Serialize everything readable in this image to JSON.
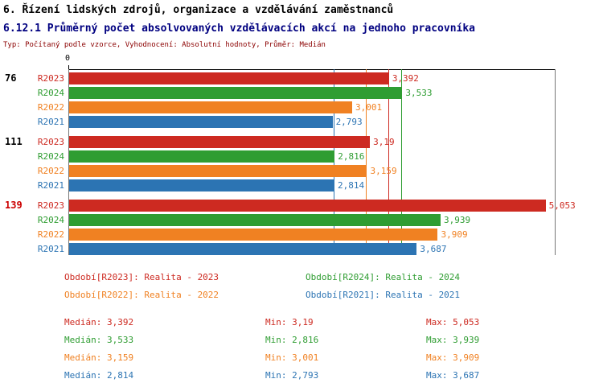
{
  "header": {
    "section_title": "6. Řízení lidských zdrojů, organizace a vzdělávání zaměstnanců",
    "indicator_title": "6.12.1 Průměrný počet absolvovaných vzdělávacích akcí na jednoho pracovníka",
    "subtitle": "Typ: Počítaný podle vzorce, Vyhodnocení: Absolutní hodnoty, Průměr: Medián"
  },
  "colors": {
    "section_title": "#000000",
    "indicator_title": "#000080",
    "subtitle": "#8b0000",
    "axis": "#000000",
    "plot_border": "#777777",
    "group_label_default": "#000000",
    "group_label_highlight": "#cc0000"
  },
  "series_colors": {
    "R2023": "#cd2a21",
    "R2024": "#2f9d32",
    "R2022": "#f08122",
    "R2021": "#2c74b3"
  },
  "chart_data": {
    "type": "bar",
    "orientation": "horizontal",
    "title": "6.12.1 Průměrný počet absolvovaných vzdělávacích akcí na jednoho pracovníka",
    "xlim": [
      0,
      5.15
    ],
    "grid": false,
    "legend_position": "bottom",
    "axis": {
      "zero_label": "0"
    },
    "series_order": [
      "R2023",
      "R2024",
      "R2022",
      "R2021"
    ],
    "groups": [
      {
        "label": "76",
        "label_color": "#000000",
        "bars": [
          {
            "series": "R2023",
            "value": 3.392,
            "label": "3,392"
          },
          {
            "series": "R2024",
            "value": 3.533,
            "label": "3,533"
          },
          {
            "series": "R2022",
            "value": 3.001,
            "label": "3,001"
          },
          {
            "series": "R2021",
            "value": 2.793,
            "label": "2,793"
          }
        ]
      },
      {
        "label": "111",
        "label_color": "#000000",
        "bars": [
          {
            "series": "R2023",
            "value": 3.19,
            "label": "3,19"
          },
          {
            "series": "R2024",
            "value": 2.816,
            "label": "2,816"
          },
          {
            "series": "R2022",
            "value": 3.159,
            "label": "3,159"
          },
          {
            "series": "R2021",
            "value": 2.814,
            "label": "2,814"
          }
        ]
      },
      {
        "label": "139",
        "label_color": "#cc0000",
        "bars": [
          {
            "series": "R2023",
            "value": 5.053,
            "label": "5,053"
          },
          {
            "series": "R2024",
            "value": 3.939,
            "label": "3,939"
          },
          {
            "series": "R2022",
            "value": 3.909,
            "label": "3,909"
          },
          {
            "series": "R2021",
            "value": 3.687,
            "label": "3,687"
          }
        ]
      }
    ],
    "median_lines": [
      {
        "series": "R2023",
        "value": 3.392
      },
      {
        "series": "R2024",
        "value": 3.533
      },
      {
        "series": "R2022",
        "value": 3.159
      },
      {
        "series": "R2021",
        "value": 2.814
      }
    ]
  },
  "legend": {
    "rows": [
      [
        {
          "series": "R2023",
          "text": "Období[R2023]: Realita - 2023"
        },
        {
          "series": "R2024",
          "text": "Období[R2024]: Realita - 2024"
        }
      ],
      [
        {
          "series": "R2022",
          "text": "Období[R2022]: Realita - 2022"
        },
        {
          "series": "R2021",
          "text": "Období[R2021]: Realita - 2021"
        }
      ]
    ]
  },
  "stats": {
    "labels": {
      "median": "Medián:",
      "min": "Min:",
      "max": "Max:"
    },
    "rows": [
      {
        "series": "R2023",
        "median": "3,392",
        "min": "3,19",
        "max": "5,053"
      },
      {
        "series": "R2024",
        "median": "3,533",
        "min": "2,816",
        "max": "3,939"
      },
      {
        "series": "R2022",
        "median": "3,159",
        "min": "3,001",
        "max": "3,909"
      },
      {
        "series": "R2021",
        "median": "2,814",
        "min": "2,793",
        "max": "3,687"
      }
    ]
  }
}
